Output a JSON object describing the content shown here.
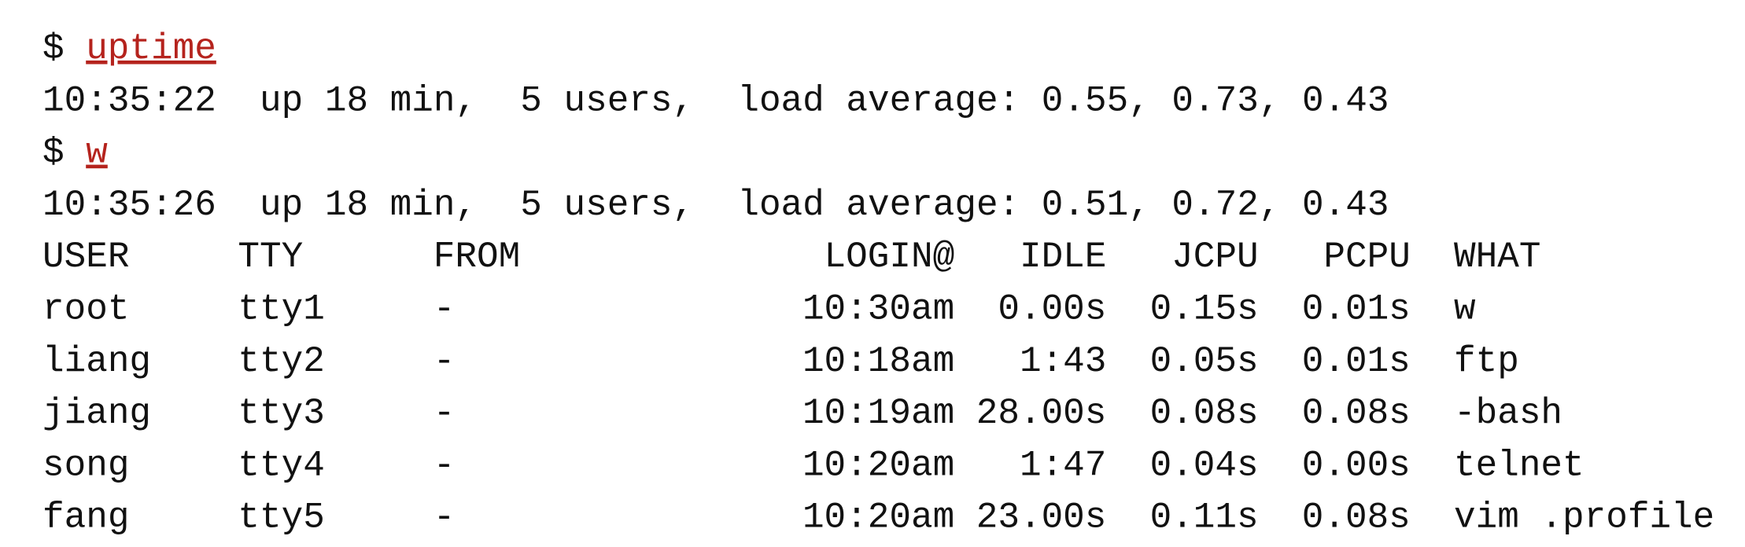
{
  "session": [
    {
      "prompt": "$",
      "command": "uptime"
    },
    {
      "output": "10:35:22  up 18 min,  5 users,  load average: 0.55, 0.73, 0.43"
    },
    {
      "prompt": "$",
      "command": "w"
    },
    {
      "output": "10:35:26  up 18 min,  5 users,  load average: 0.51, 0.72, 0.43"
    }
  ],
  "table": {
    "headers": [
      "USER",
      "TTY",
      "FROM",
      "LOGIN@",
      "IDLE",
      "JCPU",
      "PCPU",
      "WHAT"
    ],
    "rows": [
      [
        "root",
        "tty1",
        "-",
        "10:30am",
        "0.00s",
        "0.15s",
        "0.01s",
        "w"
      ],
      [
        "liang",
        "tty2",
        "-",
        "10:18am",
        "1:43",
        "0.05s",
        "0.01s",
        "ftp"
      ],
      [
        "jiang",
        "tty3",
        "-",
        "10:19am",
        "28.00s",
        "0.08s",
        "0.08s",
        "-bash"
      ],
      [
        "song",
        "tty4",
        "-",
        "10:20am",
        "1:47",
        "0.04s",
        "0.00s",
        "telnet"
      ],
      [
        "fang",
        "tty5",
        "-",
        "10:20am",
        "23.00s",
        "0.11s",
        "0.08s",
        "vim .profile"
      ]
    ]
  }
}
